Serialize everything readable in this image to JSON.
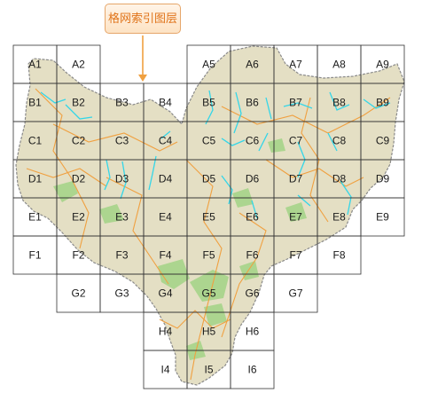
{
  "callout": {
    "label": "格网索引图层"
  },
  "grid": {
    "columns": [
      "1",
      "2",
      "3",
      "4",
      "5",
      "6",
      "7",
      "8",
      "9"
    ],
    "rows": [
      "A",
      "B",
      "C",
      "D",
      "E",
      "F",
      "G",
      "H",
      "I"
    ],
    "cells": [
      {
        "id": "A1",
        "row": 0,
        "col": 0
      },
      {
        "id": "A2",
        "row": 0,
        "col": 1
      },
      {
        "id": "A5",
        "row": 0,
        "col": 4
      },
      {
        "id": "A6",
        "row": 0,
        "col": 5
      },
      {
        "id": "A7",
        "row": 0,
        "col": 6
      },
      {
        "id": "A8",
        "row": 0,
        "col": 7
      },
      {
        "id": "A9",
        "row": 0,
        "col": 8
      },
      {
        "id": "B1",
        "row": 1,
        "col": 0
      },
      {
        "id": "B2",
        "row": 1,
        "col": 1
      },
      {
        "id": "B3",
        "row": 1,
        "col": 2
      },
      {
        "id": "B4",
        "row": 1,
        "col": 3
      },
      {
        "id": "B5",
        "row": 1,
        "col": 4
      },
      {
        "id": "B6",
        "row": 1,
        "col": 5
      },
      {
        "id": "B7",
        "row": 1,
        "col": 6
      },
      {
        "id": "B8",
        "row": 1,
        "col": 7
      },
      {
        "id": "B9",
        "row": 1,
        "col": 8
      },
      {
        "id": "C1",
        "row": 2,
        "col": 0
      },
      {
        "id": "C2",
        "row": 2,
        "col": 1
      },
      {
        "id": "C3",
        "row": 2,
        "col": 2
      },
      {
        "id": "C4",
        "row": 2,
        "col": 3
      },
      {
        "id": "C5",
        "row": 2,
        "col": 4
      },
      {
        "id": "C6",
        "row": 2,
        "col": 5
      },
      {
        "id": "C7",
        "row": 2,
        "col": 6
      },
      {
        "id": "C8",
        "row": 2,
        "col": 7
      },
      {
        "id": "C9",
        "row": 2,
        "col": 8
      },
      {
        "id": "D1",
        "row": 3,
        "col": 0
      },
      {
        "id": "D2",
        "row": 3,
        "col": 1
      },
      {
        "id": "D3",
        "row": 3,
        "col": 2
      },
      {
        "id": "D4",
        "row": 3,
        "col": 3
      },
      {
        "id": "D5",
        "row": 3,
        "col": 4
      },
      {
        "id": "D6",
        "row": 3,
        "col": 5
      },
      {
        "id": "D7",
        "row": 3,
        "col": 6
      },
      {
        "id": "D8",
        "row": 3,
        "col": 7
      },
      {
        "id": "D9",
        "row": 3,
        "col": 8
      },
      {
        "id": "E1",
        "row": 4,
        "col": 0
      },
      {
        "id": "E2",
        "row": 4,
        "col": 1
      },
      {
        "id": "E3",
        "row": 4,
        "col": 2
      },
      {
        "id": "E4",
        "row": 4,
        "col": 3
      },
      {
        "id": "E5",
        "row": 4,
        "col": 4
      },
      {
        "id": "E6",
        "row": 4,
        "col": 5
      },
      {
        "id": "E7",
        "row": 4,
        "col": 6
      },
      {
        "id": "E8",
        "row": 4,
        "col": 7
      },
      {
        "id": "E9",
        "row": 4,
        "col": 8
      },
      {
        "id": "F1",
        "row": 5,
        "col": 0
      },
      {
        "id": "F2",
        "row": 5,
        "col": 1
      },
      {
        "id": "F3",
        "row": 5,
        "col": 2
      },
      {
        "id": "F4",
        "row": 5,
        "col": 3
      },
      {
        "id": "F5",
        "row": 5,
        "col": 4
      },
      {
        "id": "F6",
        "row": 5,
        "col": 5
      },
      {
        "id": "F7",
        "row": 5,
        "col": 6
      },
      {
        "id": "F8",
        "row": 5,
        "col": 7
      },
      {
        "id": "G2",
        "row": 6,
        "col": 1
      },
      {
        "id": "G3",
        "row": 6,
        "col": 2
      },
      {
        "id": "G4",
        "row": 6,
        "col": 3
      },
      {
        "id": "G5",
        "row": 6,
        "col": 4
      },
      {
        "id": "G6",
        "row": 6,
        "col": 5
      },
      {
        "id": "G7",
        "row": 6,
        "col": 6
      },
      {
        "id": "H4",
        "row": 7,
        "col": 3
      },
      {
        "id": "H5",
        "row": 7,
        "col": 4
      },
      {
        "id": "H6",
        "row": 7,
        "col": 5
      },
      {
        "id": "I4",
        "row": 8,
        "col": 3
      },
      {
        "id": "I5",
        "row": 8,
        "col": 4
      },
      {
        "id": "I6",
        "row": 8,
        "col": 5
      }
    ]
  },
  "colors": {
    "land": "#e4dfc4",
    "boundary": "#8a8a8a",
    "river": "#33d6e8",
    "road": "#f0a040",
    "vegetation": "#a6d48a",
    "grid_line": "#333333",
    "callout_text": "#e0751c"
  }
}
